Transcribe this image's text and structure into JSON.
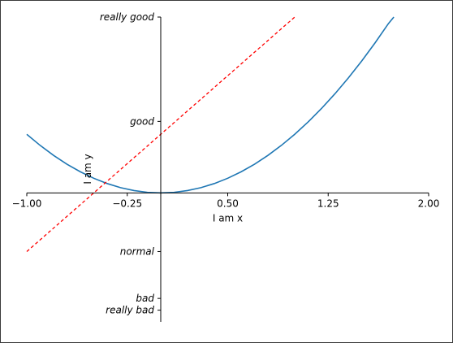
{
  "chart_data": {
    "type": "line",
    "xlabel": "I am x",
    "ylabel": "I am y",
    "xlim": [
      -1.0,
      2.0
    ],
    "ylim": [
      -2.2,
      3.0
    ],
    "x_ticks": [
      {
        "value": -1.0,
        "label": "−1.00"
      },
      {
        "value": -0.25,
        "label": "−0.25"
      },
      {
        "value": 0.5,
        "label": "0.50"
      },
      {
        "value": 1.25,
        "label": "1.25"
      },
      {
        "value": 2.0,
        "label": "2.00"
      }
    ],
    "y_ticks": [
      {
        "value": -2.0,
        "label": "really bad"
      },
      {
        "value": -1.8,
        "label": "bad"
      },
      {
        "value": -1.0,
        "label": "normal"
      },
      {
        "value": 1.22,
        "label": "good"
      },
      {
        "value": 3.0,
        "label": "really good"
      }
    ],
    "spines": {
      "x_at": 0,
      "y_at": 0
    },
    "series": [
      {
        "kind": "curve",
        "color": "#1f77b4",
        "style": "solid",
        "x": [
          -1.0,
          -0.9,
          -0.8,
          -0.7,
          -0.6,
          -0.5,
          -0.4,
          -0.3,
          -0.2,
          -0.1,
          0.0,
          0.1,
          0.2,
          0.3,
          0.4,
          0.5,
          0.6,
          0.7,
          0.8,
          0.9,
          1.0,
          1.1,
          1.2,
          1.3,
          1.4,
          1.5,
          1.6,
          1.7,
          1.74
        ],
        "y": [
          1.0,
          0.81,
          0.64,
          0.49,
          0.36,
          0.25,
          0.16,
          0.09,
          0.04,
          0.01,
          0.0,
          0.01,
          0.04,
          0.09,
          0.16,
          0.25,
          0.36,
          0.49,
          0.64,
          0.81,
          1.0,
          1.21,
          1.44,
          1.69,
          1.96,
          2.25,
          2.56,
          2.89,
          3.0
        ]
      },
      {
        "kind": "line",
        "color": "#ff0000",
        "style": "dashed",
        "x": [
          -1.0,
          1.0
        ],
        "y": [
          -1.0,
          3.0
        ]
      }
    ]
  }
}
